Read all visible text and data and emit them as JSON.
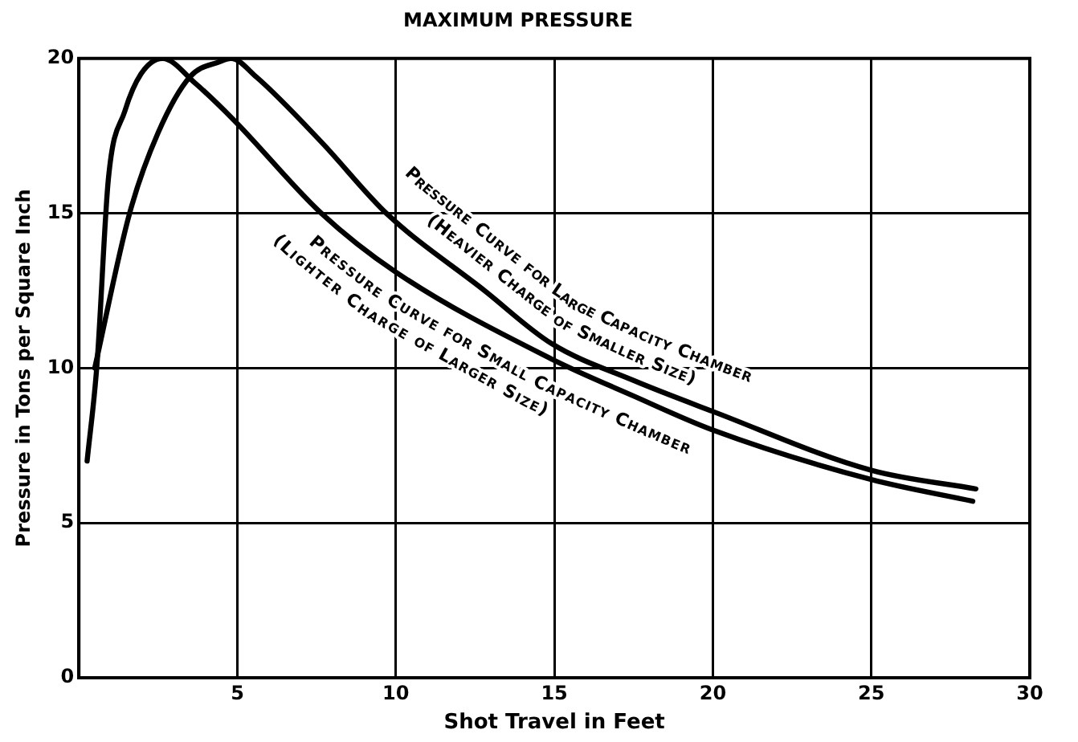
{
  "chart_data": {
    "type": "line",
    "title": "MAXIMUM PRESSURE",
    "xlabel": "Shot Travel in Feet",
    "ylabel": "Pressure in Tons per Square Inch",
    "xlim": [
      0,
      30
    ],
    "xticks": [
      {
        "value": 0,
        "label": null
      },
      5,
      10,
      15,
      20,
      25,
      30
    ],
    "ylim": [
      0,
      20
    ],
    "yticks": [
      0,
      5,
      10,
      15,
      20
    ],
    "grid": true,
    "marker": "none",
    "line_style": "solid",
    "series": [
      {
        "color": "#000000",
        "x": [
          0.5,
          1.6,
          2.5,
          3.5,
          4.45,
          4.8,
          5.6,
          7.65,
          9.7,
          12.8,
          14.9,
          17.5,
          20,
          25,
          28.3
        ],
        "values": [
          10,
          15,
          17.6,
          19.4,
          19.9,
          20,
          19.4,
          17.3,
          15,
          12.5,
          10.8,
          9.6,
          8.6,
          6.7,
          6.1
        ]
      },
      {
        "color": "#000000",
        "x": [
          0.26,
          0.57,
          0.93,
          1.45,
          1.96,
          2.64,
          3.67,
          4.9,
          7.65,
          10,
          14.9,
          17.5,
          20,
          25,
          28.2
        ],
        "values": [
          7,
          10.1,
          16.1,
          18.3,
          19.5,
          20,
          19.2,
          18,
          15,
          13.1,
          10.3,
          9.1,
          8,
          6.4,
          5.7
        ]
      }
    ],
    "annotations": [
      "Pressure Curve for Large Capacity Chamber",
      "(Heavier Charge of Smaller Size)",
      "Pressure Curve for Small Capacity Chamber",
      "(Lighter Charge of Larger Size)"
    ]
  }
}
